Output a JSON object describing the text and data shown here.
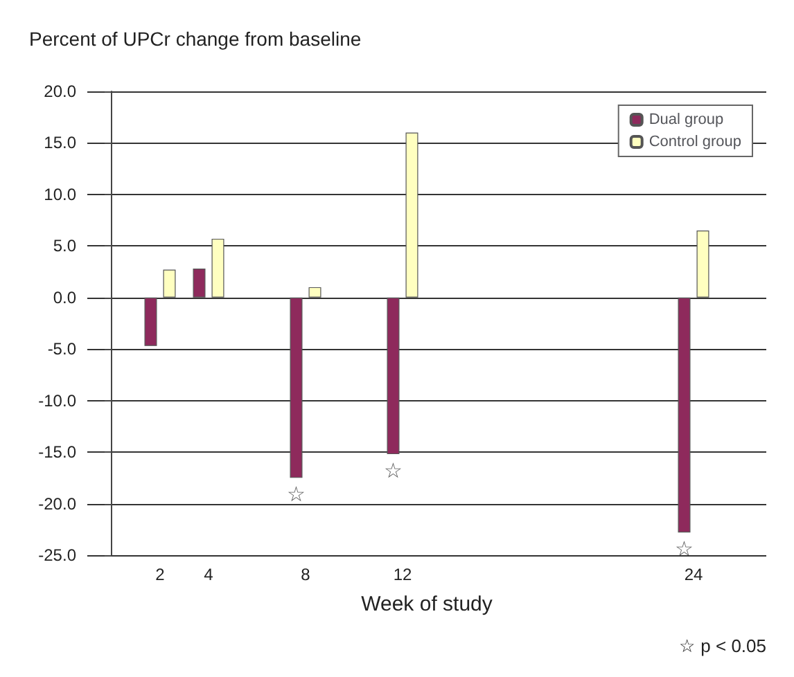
{
  "chart_data": {
    "type": "bar",
    "title": "Percent of UPCr change from baseline",
    "xlabel": "Week of study",
    "x": [
      2,
      4,
      8,
      12,
      24
    ],
    "series": [
      {
        "name": "Dual group",
        "color": "#8e2a5c",
        "values": [
          -4.7,
          2.8,
          -17.5,
          -15.2,
          -22.8
        ]
      },
      {
        "name": "Control group",
        "color": "#ffffc0",
        "values": [
          2.7,
          5.7,
          1.0,
          16.0,
          6.5
        ]
      }
    ],
    "xlim": [
      -1,
      27
    ],
    "xticks": [
      2,
      4,
      8,
      12,
      24
    ],
    "ylim": [
      -25,
      20
    ],
    "yticks": [
      {
        "value": -25,
        "label": "-25.0"
      },
      {
        "value": -20,
        "label": "-20.0"
      },
      {
        "value": -15,
        "label": "-15.0"
      },
      {
        "value": -10,
        "label": "-10.0"
      },
      {
        "value": -5,
        "label": "-5.0"
      },
      {
        "value": 0,
        "label": "0.0"
      },
      {
        "value": 5,
        "label": "5.0"
      },
      {
        "value": 10,
        "label": "10.0"
      },
      {
        "value": 15,
        "label": "15.0"
      },
      {
        "value": 20,
        "label": "20.0"
      }
    ],
    "grid": "y",
    "legend": "top right",
    "annotations": [
      {
        "text": "☆",
        "x": 8,
        "y": -17.5
      },
      {
        "text": "☆",
        "x": 12,
        "y": -15.2
      },
      {
        "text": "☆",
        "x": 24,
        "y": -22.8
      },
      "☆ p < 0.05"
    ]
  }
}
